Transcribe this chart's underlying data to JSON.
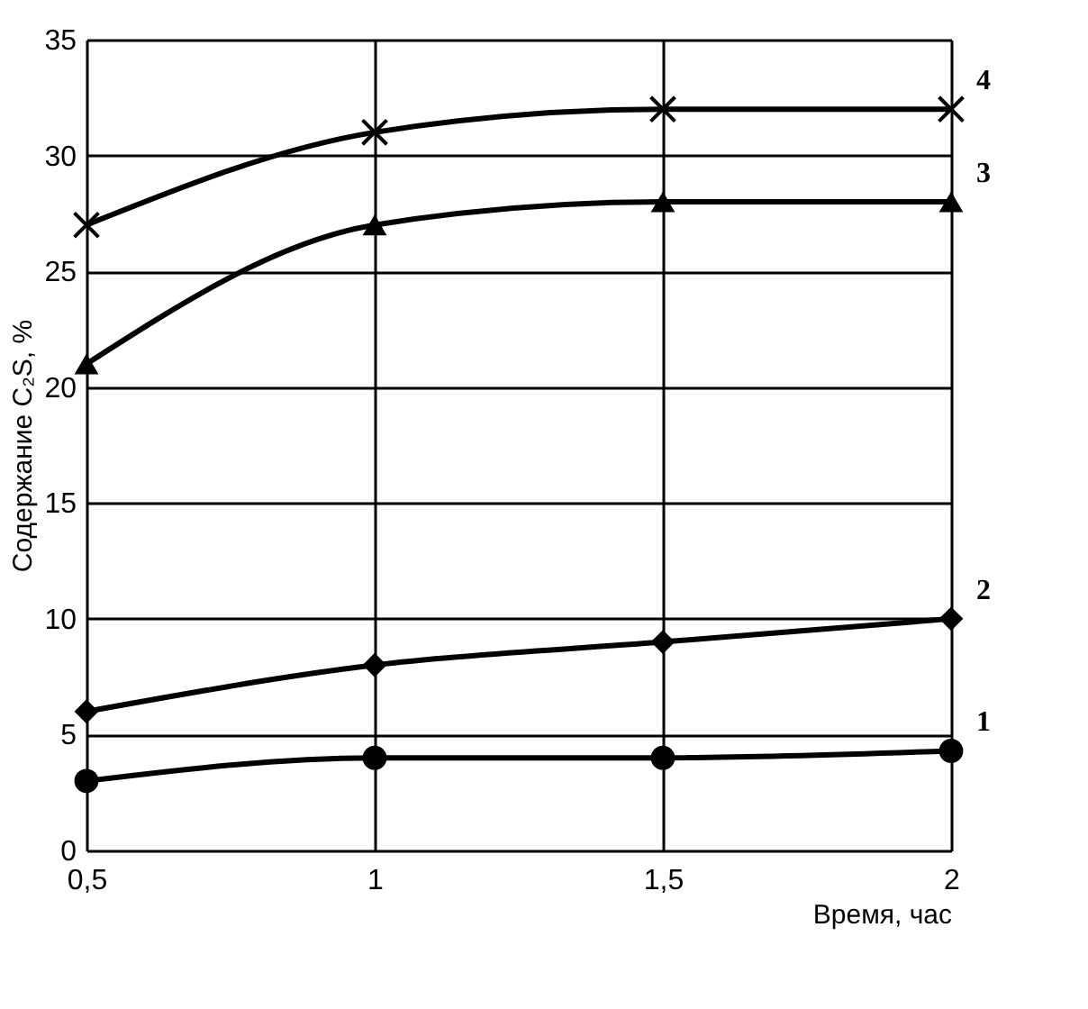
{
  "chart_data": {
    "type": "line",
    "xlabel": "Время, час",
    "ylabel": "Содержание C₂S, %",
    "x": [
      0.5,
      1,
      1.5,
      2
    ],
    "series": [
      {
        "name": "1",
        "color": "#000000",
        "marker": "circle",
        "values": [
          3,
          4,
          4,
          4.3
        ]
      },
      {
        "name": "2",
        "color": "#000000",
        "marker": "diamond",
        "values": [
          6,
          8,
          9,
          10
        ]
      },
      {
        "name": "3",
        "color": "#000000",
        "marker": "triangle",
        "values": [
          21,
          27,
          28,
          28
        ]
      },
      {
        "name": "4",
        "color": "#000000",
        "marker": "cross",
        "values": [
          27,
          31,
          32,
          32
        ]
      }
    ],
    "xlim": [
      0.5,
      2
    ],
    "xticks": [
      {
        "value": 0.5,
        "label": "0,5"
      },
      1,
      {
        "value": 1.5,
        "label": "1,5"
      },
      2
    ],
    "ylim": [
      0,
      35
    ],
    "yticks": [
      0,
      5,
      10,
      15,
      20,
      25,
      30,
      35
    ],
    "grid": true,
    "line_style": "solid"
  }
}
